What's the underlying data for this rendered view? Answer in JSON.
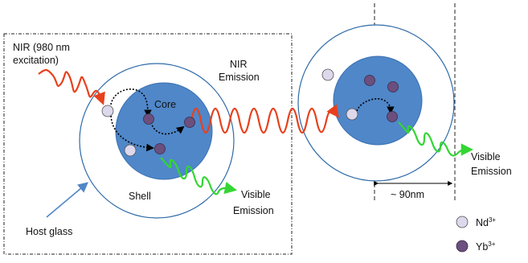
{
  "labels": {
    "nir_excitation_line1": "NIR (980 nm",
    "nir_excitation_line2": "excitation)",
    "nir_emission_line1": "NIR",
    "nir_emission_line2": "Emission",
    "core": "Core",
    "shell": "Shell",
    "host_glass": "Host glass",
    "visible_emission_left_line1": "Visible",
    "visible_emission_left_line2": "Emission",
    "visible_emission_right_line1": "Visible",
    "visible_emission_right_line2": "Emission",
    "distance": "~ 90nm"
  },
  "legend": [
    {
      "ion": "Nd",
      "charge": "3+",
      "color": "#ddd8ec"
    },
    {
      "ion": "Yb",
      "charge": "3+",
      "color": "#6b4f7e"
    }
  ],
  "colors": {
    "core": "#4f87c9",
    "shell_stroke": "#2e6aa8",
    "nir_wave": "#e8401c",
    "visible_wave": "#33d633",
    "nd_ion": "#ddd8ec",
    "yb_ion": "#6b4f7e",
    "host_glass_arrow": "#4f86c6"
  }
}
